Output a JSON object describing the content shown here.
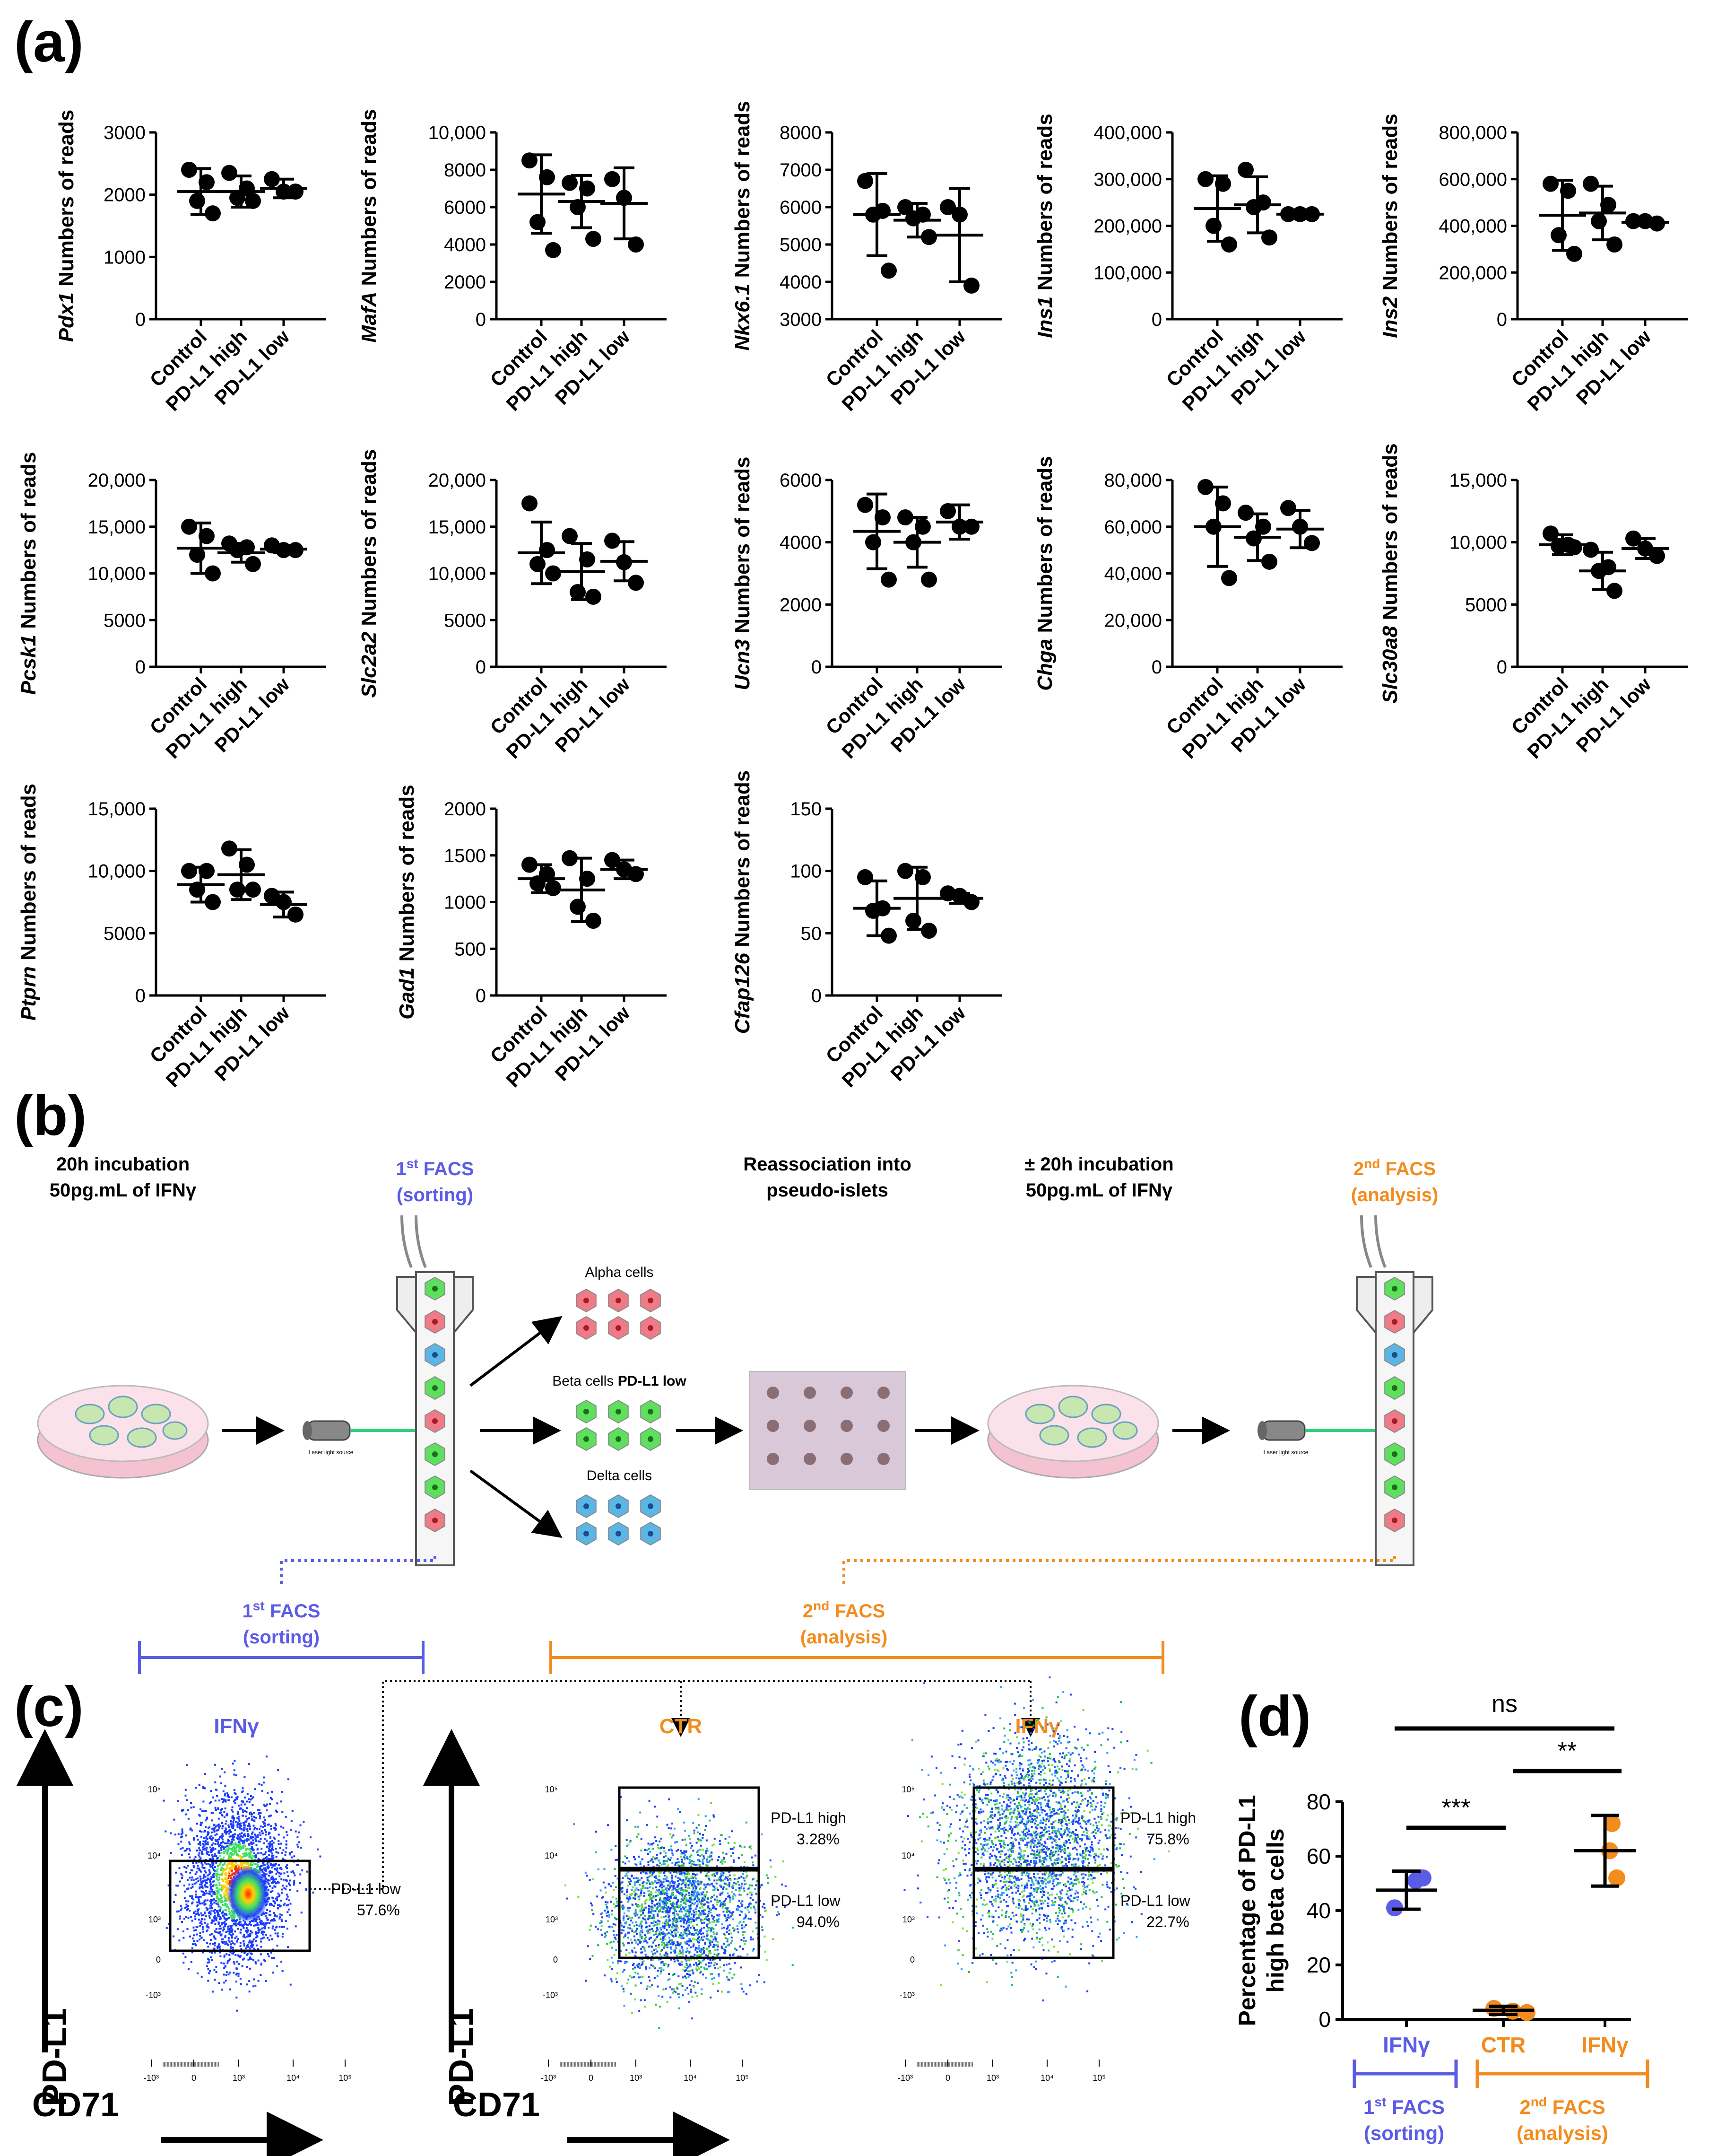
{
  "panels": {
    "a": "(a)",
    "b": "(b)",
    "c": "(c)",
    "d": "(d)"
  },
  "groups": [
    "Control",
    "PD-L1 high",
    "PD-L1 low"
  ],
  "ylabel_suffix": " Numbers of reads",
  "chart_data": [
    {
      "type": "scatter",
      "gene": "Pdx1",
      "ylim": [
        0,
        3000
      ],
      "ticks": [
        "0",
        "1000",
        "2000",
        "3000"
      ],
      "tick_values": [
        0,
        1000,
        2000,
        3000
      ],
      "series": [
        {
          "name": "Control",
          "values": [
            2400,
            2200,
            1900,
            1700
          ],
          "mean": 2050,
          "sd": 370
        },
        {
          "name": "PD-L1 high",
          "values": [
            2350,
            2100,
            1950,
            1900
          ],
          "mean": 2050,
          "sd": 250
        },
        {
          "name": "PD-L1 low",
          "values": [
            2250,
            2050,
            2050
          ],
          "mean": 2100,
          "sd": 150
        }
      ]
    },
    {
      "type": "scatter",
      "gene": "MafA",
      "ylim": [
        0,
        10000
      ],
      "ticks": [
        "0",
        "2000",
        "4000",
        "6000",
        "8000",
        "10,000"
      ],
      "tick_values": [
        0,
        2000,
        4000,
        6000,
        8000,
        10000
      ],
      "series": [
        {
          "name": "Control",
          "values": [
            8500,
            7600,
            5200,
            3700
          ],
          "mean": 6700,
          "sd": 2100
        },
        {
          "name": "PD-L1 high",
          "values": [
            7300,
            7000,
            6000,
            4300
          ],
          "mean": 6300,
          "sd": 1400
        },
        {
          "name": "PD-L1 low",
          "values": [
            7500,
            6500,
            4000
          ],
          "mean": 6200,
          "sd": 1900
        }
      ]
    },
    {
      "type": "scatter",
      "gene": "Nkx6.1",
      "ylim": [
        3000,
        8000
      ],
      "ticks": [
        "3000",
        "4000",
        "5000",
        "6000",
        "7000",
        "8000"
      ],
      "tick_values": [
        3000,
        4000,
        5000,
        6000,
        7000,
        8000
      ],
      "series": [
        {
          "name": "Control",
          "values": [
            6700,
            5900,
            5800,
            4300
          ],
          "mean": 5800,
          "sd": 1100
        },
        {
          "name": "PD-L1 high",
          "values": [
            6000,
            5800,
            5700,
            5200
          ],
          "mean": 5650,
          "sd": 450
        },
        {
          "name": "PD-L1 low",
          "values": [
            6000,
            5800,
            3900
          ],
          "mean": 5250,
          "sd": 1250
        }
      ]
    },
    {
      "type": "scatter",
      "gene": "Ins1",
      "ylim": [
        0,
        400000
      ],
      "ticks": [
        "0",
        "100,000",
        "200,000",
        "300,000",
        "400,000"
      ],
      "tick_values": [
        0,
        100000,
        200000,
        300000,
        400000
      ],
      "series": [
        {
          "name": "Control",
          "values": [
            300000,
            290000,
            200000,
            160000
          ],
          "mean": 237000,
          "sd": 70000
        },
        {
          "name": "PD-L1 high",
          "values": [
            320000,
            250000,
            240000,
            175000
          ],
          "mean": 245000,
          "sd": 60000
        },
        {
          "name": "PD-L1 low",
          "values": [
            225000,
            225000,
            225000
          ],
          "mean": 225000,
          "sd": 5000
        }
      ]
    },
    {
      "type": "scatter",
      "gene": "Ins2",
      "ylim": [
        0,
        800000
      ],
      "ticks": [
        "0",
        "200,000",
        "400,000",
        "600,000",
        "800,000"
      ],
      "tick_values": [
        0,
        200000,
        400000,
        600000,
        800000
      ],
      "series": [
        {
          "name": "Control",
          "values": [
            580000,
            550000,
            360000,
            280000
          ],
          "mean": 445000,
          "sd": 150000
        },
        {
          "name": "PD-L1 high",
          "values": [
            580000,
            490000,
            420000,
            320000
          ],
          "mean": 455000,
          "sd": 115000
        },
        {
          "name": "PD-L1 low",
          "values": [
            420000,
            420000,
            410000
          ],
          "mean": 415000,
          "sd": 6000
        }
      ]
    },
    {
      "type": "scatter",
      "gene": "Pcsk1",
      "ylim": [
        0,
        20000
      ],
      "ticks": [
        "0",
        "5000",
        "10,000",
        "15,000",
        "20,000"
      ],
      "tick_values": [
        0,
        5000,
        10000,
        15000,
        20000
      ],
      "series": [
        {
          "name": "Control",
          "values": [
            15000,
            14000,
            12000,
            10000
          ],
          "mean": 12700,
          "sd": 2700
        },
        {
          "name": "PD-L1 high",
          "values": [
            13200,
            12800,
            12500,
            11000
          ],
          "mean": 12200,
          "sd": 1000
        },
        {
          "name": "PD-L1 low",
          "values": [
            13000,
            12500,
            12500
          ],
          "mean": 12600,
          "sd": 400
        }
      ]
    },
    {
      "type": "scatter",
      "gene": "Slc2a2",
      "ylim": [
        0,
        20000
      ],
      "ticks": [
        "0",
        "5000",
        "10,000",
        "15,000",
        "20,000"
      ],
      "tick_values": [
        0,
        5000,
        10000,
        15000,
        20000
      ],
      "series": [
        {
          "name": "Control",
          "values": [
            17500,
            12500,
            11000,
            10000
          ],
          "mean": 12200,
          "sd": 3300
        },
        {
          "name": "PD-L1 high",
          "values": [
            14000,
            11500,
            8000,
            7500
          ],
          "mean": 10200,
          "sd": 3000
        },
        {
          "name": "PD-L1 low",
          "values": [
            13500,
            11200,
            9000
          ],
          "mean": 11300,
          "sd": 2100
        }
      ]
    },
    {
      "type": "scatter",
      "gene": "Ucn3",
      "ylim": [
        0,
        6000
      ],
      "ticks": [
        "0",
        "2000",
        "4000",
        "6000"
      ],
      "tick_values": [
        0,
        2000,
        4000,
        6000
      ],
      "series": [
        {
          "name": "Control",
          "values": [
            5200,
            4800,
            4000,
            2800
          ],
          "mean": 4350,
          "sd": 1200
        },
        {
          "name": "PD-L1 high",
          "values": [
            4800,
            4500,
            4000,
            2800
          ],
          "mean": 4000,
          "sd": 800
        },
        {
          "name": "PD-L1 low",
          "values": [
            5000,
            4500,
            4500
          ],
          "mean": 4650,
          "sd": 550
        }
      ]
    },
    {
      "type": "scatter",
      "gene": "Chga",
      "ylim": [
        0,
        80000
      ],
      "ticks": [
        "0",
        "20,000",
        "40,000",
        "60,000",
        "80,000"
      ],
      "tick_values": [
        0,
        20000,
        40000,
        60000,
        80000
      ],
      "series": [
        {
          "name": "Control",
          "values": [
            77000,
            70000,
            60000,
            38000
          ],
          "mean": 60000,
          "sd": 17000
        },
        {
          "name": "PD-L1 high",
          "values": [
            66000,
            60000,
            55000,
            45000
          ],
          "mean": 55500,
          "sd": 10000
        },
        {
          "name": "PD-L1 low",
          "values": [
            68000,
            60000,
            53000
          ],
          "mean": 59000,
          "sd": 8000
        }
      ]
    },
    {
      "type": "scatter",
      "gene": "Slc30a8",
      "ylim": [
        0,
        15000
      ],
      "ticks": [
        "0",
        "5000",
        "10,000",
        "15,000"
      ],
      "tick_values": [
        0,
        5000,
        10000,
        15000
      ],
      "series": [
        {
          "name": "Control",
          "values": [
            10700,
            9800,
            9700,
            9600
          ],
          "mean": 9800,
          "sd": 800
        },
        {
          "name": "PD-L1 high",
          "values": [
            9400,
            8000,
            7700,
            6100
          ],
          "mean": 7700,
          "sd": 1500
        },
        {
          "name": "PD-L1 low",
          "values": [
            10300,
            9500,
            8900
          ],
          "mean": 9500,
          "sd": 800
        }
      ]
    },
    {
      "type": "scatter",
      "gene": "Ptprn",
      "ylim": [
        0,
        15000
      ],
      "ticks": [
        "0",
        "5000",
        "10,000",
        "15,000"
      ],
      "tick_values": [
        0,
        5000,
        10000,
        15000
      ],
      "series": [
        {
          "name": "Control",
          "values": [
            10000,
            10000,
            8500,
            7500
          ],
          "mean": 8900,
          "sd": 1400
        },
        {
          "name": "PD-L1 high",
          "values": [
            11800,
            10500,
            8500,
            8500
          ],
          "mean": 9700,
          "sd": 2000
        },
        {
          "name": "PD-L1 low",
          "values": [
            8000,
            7500,
            6500
          ],
          "mean": 7300,
          "sd": 1000
        }
      ]
    },
    {
      "type": "scatter",
      "gene": "Gad1",
      "ylim": [
        0,
        2000
      ],
      "ticks": [
        "0",
        "500",
        "1000",
        "1500",
        "2000"
      ],
      "tick_values": [
        0,
        500,
        1000,
        1500,
        2000
      ],
      "series": [
        {
          "name": "Control",
          "values": [
            1400,
            1300,
            1200,
            1150
          ],
          "mean": 1250,
          "sd": 150
        },
        {
          "name": "PD-L1 high",
          "values": [
            1470,
            1250,
            950,
            800
          ],
          "mean": 1130,
          "sd": 340
        },
        {
          "name": "PD-L1 low",
          "values": [
            1450,
            1350,
            1300
          ],
          "mean": 1350,
          "sd": 100
        }
      ]
    },
    {
      "type": "scatter",
      "gene": "Cfap126",
      "ylim": [
        0,
        150
      ],
      "ticks": [
        "0",
        "50",
        "100",
        "150"
      ],
      "tick_values": [
        0,
        50,
        100,
        150
      ],
      "series": [
        {
          "name": "Control",
          "values": [
            95,
            70,
            68,
            48
          ],
          "mean": 70,
          "sd": 22
        },
        {
          "name": "PD-L1 high",
          "values": [
            100,
            95,
            60,
            52
          ],
          "mean": 78,
          "sd": 25
        },
        {
          "name": "PD-L1 low",
          "values": [
            82,
            80,
            75
          ],
          "mean": 78,
          "sd": 4
        }
      ]
    },
    {
      "type": "scatter",
      "panel": "d",
      "ylabel": "Percentage of PD-L1 high beta cells",
      "ylabel_lines": [
        "Percentage of PD-L1",
        "high beta cells"
      ],
      "ylim": [
        0,
        80
      ],
      "ticks": [
        "0",
        "20",
        "40",
        "60",
        "80"
      ],
      "tick_values": [
        0,
        20,
        40,
        60,
        80
      ],
      "categories": [
        "IFNγ",
        "CTR",
        "IFNγ"
      ],
      "series": [
        {
          "name": "IFNγ (1st FACS)",
          "color": "#5b5ce6",
          "values": [
            52,
            41,
            51
          ],
          "mean": 47.5,
          "sd": 7
        },
        {
          "name": "CTR (2nd FACS)",
          "color": "#f28c1e",
          "values": [
            4,
            3,
            2.5
          ],
          "mean": 3.3,
          "sd": 1.5
        },
        {
          "name": "IFNγ (2nd FACS)",
          "color": "#f28c1e",
          "values": [
            72,
            62,
            52
          ],
          "mean": 62,
          "sd": 13
        }
      ],
      "significance": [
        {
          "label": "ns"
        },
        {
          "label": "***"
        },
        {
          "label": "**"
        }
      ]
    }
  ],
  "workflow": {
    "step1_line1": "20h incubation",
    "step1_line2": "50pg.mL of IFNγ",
    "facs1_line1": "1st FACS",
    "facs1_line2": "(sorting)",
    "reassoc_line1": "Reassociation into",
    "reassoc_line2": "pseudo-islets",
    "step2_line1": "± 20h incubation",
    "step2_line2": "50pg.mL of IFNγ",
    "facs2_line1": "2nd FACS",
    "facs2_line2": "(analysis)",
    "alpha": "Alpha cells",
    "beta": "Beta cells",
    "beta_bold": "PD-L1 low",
    "delta": "Delta cells",
    "laser": "Laser light source",
    "sup_st": "st",
    "sup_nd": "nd",
    "color_blue": "#5b5ce6",
    "color_orange": "#f28c1e"
  },
  "facs": {
    "y_axis": "PD-L1",
    "x_axis": "CD71",
    "plot1_title": "IFNγ",
    "plot2_title": "CTR",
    "plot3_title": "IFNγ",
    "gate_low_label": "PD-L1 low",
    "gate_high_label": "PD-L1 high",
    "plot1_low_pct": "57.6%",
    "plot2_high_pct": "3.28%",
    "plot2_low_pct": "94.0%",
    "plot3_high_pct": "75.8%",
    "plot3_low_pct": "22.7%",
    "y_ticks": [
      "10⁵",
      "10⁴",
      "10³",
      "0",
      "-10³"
    ],
    "x_ticks": [
      "-10³",
      "0",
      "10³",
      "10⁴",
      "10⁵"
    ]
  }
}
